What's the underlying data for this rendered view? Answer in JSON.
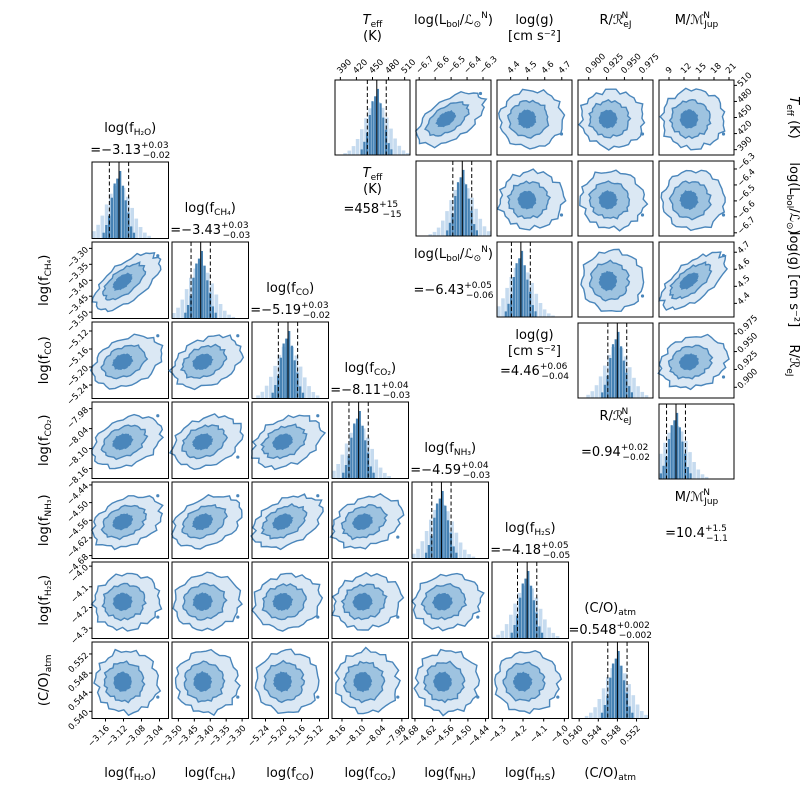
{
  "chart_data": {
    "type": "corner",
    "description_words": "two corner plots of posterior distributions",
    "colors": {
      "hist_light": "#c6dbef",
      "hist_main": "#4682b4",
      "contour_1": "#dbe8f4",
      "contour_2": "#9ec3e0",
      "contour_3": "#4a86bb",
      "contour_line": "#4a86bb",
      "median_line": "#000000"
    },
    "lower": {
      "params": [
        {
          "key": "fH2O",
          "label_pre": "log(f",
          "label_sub": "H₂O",
          "label_post": ")",
          "median": -3.13,
          "plus": "+0.03",
          "minus": "−0.02",
          "value_text": "=−3.13",
          "range": [
            -3.19,
            -3.02
          ],
          "ticks": [
            "−3.16",
            "−3.12",
            "−3.08",
            "−3.04"
          ],
          "tick_vals": [
            -3.16,
            -3.12,
            -3.08,
            -3.04
          ]
        },
        {
          "key": "fCH4",
          "label_pre": "log(f",
          "label_sub": "CH₄",
          "label_post": ")",
          "median": -3.43,
          "plus": "+0.03",
          "minus": "−0.03",
          "value_text": "=−3.43",
          "range": [
            -3.52,
            -3.28
          ],
          "ticks": [
            "−3.50",
            "−3.45",
            "−3.40",
            "−3.35",
            "−3.30"
          ],
          "tick_vals": [
            -3.5,
            -3.45,
            -3.4,
            -3.35,
            -3.3
          ]
        },
        {
          "key": "fCO",
          "label_pre": "log(f",
          "label_sub": "CO",
          "label_post": ")",
          "median": -5.19,
          "plus": "+0.03",
          "minus": "−0.02",
          "value_text": "=−5.19",
          "range": [
            -5.27,
            -5.1
          ],
          "ticks": [
            "−5.24",
            "−5.20",
            "−5.16",
            "−5.12"
          ],
          "tick_vals": [
            -5.24,
            -5.2,
            -5.16,
            -5.12
          ]
        },
        {
          "key": "fCO2",
          "label_pre": "log(f",
          "label_sub": "CO₂",
          "label_post": ")",
          "median": -8.11,
          "plus": "+0.04",
          "minus": "−0.03",
          "value_text": "=−8.11",
          "range": [
            -8.19,
            -7.96
          ],
          "ticks": [
            "−8.16",
            "−8.10",
            "−8.04",
            "−7.98"
          ],
          "tick_vals": [
            -8.16,
            -8.1,
            -8.04,
            -7.98
          ]
        },
        {
          "key": "fNH3",
          "label_pre": "log(f",
          "label_sub": "NH₃",
          "label_post": ")",
          "median": -4.59,
          "plus": "+0.04",
          "minus": "−0.03",
          "value_text": "=−4.59",
          "range": [
            -4.69,
            -4.43
          ],
          "ticks": [
            "−4.68",
            "−4.62",
            "−4.56",
            "−4.50",
            "−4.44"
          ],
          "tick_vals": [
            -4.68,
            -4.62,
            -4.56,
            -4.5,
            -4.44
          ]
        },
        {
          "key": "fH2S",
          "label_pre": "log(f",
          "label_sub": "H₂S",
          "label_post": ")",
          "median": -4.18,
          "plus": "+0.05",
          "minus": "−0.05",
          "value_text": "=−4.18",
          "range": [
            -4.35,
            -3.98
          ],
          "ticks": [
            "−4.3",
            "−4.2",
            "−4.1",
            "−4.0"
          ],
          "tick_vals": [
            -4.3,
            -4.2,
            -4.1,
            -4.0
          ]
        },
        {
          "key": "CO",
          "label_pre": "(C/O)",
          "label_sub": "atm",
          "label_post": "",
          "median": 0.548,
          "plus": "+0.002",
          "minus": "−0.002",
          "value_text": "=0.548",
          "range": [
            0.5385,
            0.5545
          ],
          "ticks": [
            "0.540",
            "0.544",
            "0.548",
            "0.552"
          ],
          "tick_vals": [
            0.54,
            0.544,
            0.548,
            0.552
          ]
        }
      ]
    },
    "upper": {
      "params": [
        {
          "key": "Teff",
          "label_line1": "T_eff",
          "label_line2": "(K)",
          "value_text": "=458",
          "plus": "+15",
          "minus": "−15",
          "median": 458,
          "range": [
            380,
            520
          ],
          "ticks": [
            "390",
            "420",
            "450",
            "480",
            "510"
          ],
          "tick_vals": [
            390,
            420,
            450,
            480,
            510
          ]
        },
        {
          "key": "Lbol",
          "label_line1": "log(L_bol/L⊙N)",
          "label_line2": "",
          "value_text": "=−6.43",
          "plus": "+0.05",
          "minus": "−0.06",
          "median": -6.43,
          "range": [
            -6.72,
            -6.25
          ],
          "ticks": [
            "−6.7",
            "−6.6",
            "−6.5",
            "−6.4",
            "−6.3"
          ],
          "tick_vals": [
            -6.7,
            -6.6,
            -6.5,
            -6.4,
            -6.3
          ]
        },
        {
          "key": "logg",
          "label_line1": "log(g)",
          "label_line2": "[cm s⁻²]",
          "value_text": "=4.46",
          "plus": "+0.06",
          "minus": "−0.04",
          "median": 4.46,
          "range": [
            4.32,
            4.76
          ],
          "ticks": [
            "4.4",
            "4.5",
            "4.6",
            "4.7"
          ],
          "tick_vals": [
            4.4,
            4.5,
            4.6,
            4.7
          ]
        },
        {
          "key": "R",
          "label_line1": "R/R_eJN",
          "label_line2": "",
          "value_text": "=0.94",
          "plus": "+0.02",
          "minus": "−0.02",
          "median": 0.94,
          "range": [
            0.885,
            0.99
          ],
          "ticks": [
            "0.900",
            "0.925",
            "0.950",
            "0.975"
          ],
          "tick_vals": [
            0.9,
            0.925,
            0.95,
            0.975
          ]
        },
        {
          "key": "M",
          "label_line1": "M/M_JupN",
          "label_line2": "",
          "value_text": "=10.4",
          "plus": "+1.5",
          "minus": "−1.1",
          "median": 10.4,
          "range": [
            7,
            22
          ],
          "ticks": [
            "9",
            "12",
            "15",
            "18",
            "21"
          ],
          "tick_vals": [
            9,
            12,
            15,
            18,
            21
          ]
        }
      ],
      "top_labels": [
        {
          "line1": "T",
          "sub1": "eff",
          "line2": "(K)"
        },
        {
          "line1": "log(L",
          "sub1": "bol",
          "tail": "/ℒ",
          "sub2": "⊙",
          "sup2": "N",
          "close": ")"
        },
        {
          "line1": "log(g)",
          "line2": "[cm s⁻²]"
        },
        {
          "line1": "R/ℛ",
          "sub1": "eJ",
          "sup1": "N"
        },
        {
          "line1": "M/ℳ",
          "sub1": "Jup",
          "sup1": "N"
        }
      ],
      "right_labels": [
        {
          "text": "T_eff (K)"
        },
        {
          "text": "log(L_bol/L⊙N)"
        },
        {
          "text": "log(g) [cm s⁻²]"
        },
        {
          "text": "R/R_eJN"
        }
      ]
    }
  }
}
